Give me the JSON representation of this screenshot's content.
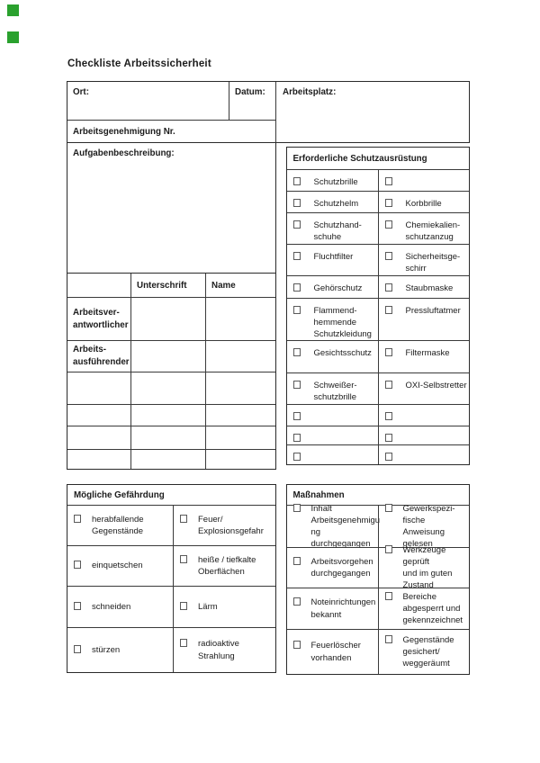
{
  "ui": {
    "marker_color": "#2aa12e"
  },
  "title": "Checkliste Arbeitssicherheit",
  "top": {
    "ort_label": "Ort:",
    "datum_label": "Datum:",
    "arbeitsplatz_label": "Arbeitsplatz:",
    "genehmigung_label": "Arbeitsgenehmigung Nr.",
    "aufgaben_label": "Aufgabenbeschreibung:"
  },
  "signature": {
    "header_unterschrift": "Unterschrift",
    "header_name": "Name",
    "rows": [
      {
        "label": "Arbeitsver-\nantwortlicher"
      },
      {
        "label": "Arbeits-\nausführender"
      },
      {
        "label": ""
      },
      {
        "label": ""
      },
      {
        "label": ""
      },
      {
        "label": ""
      }
    ]
  },
  "equipment": {
    "header": "Erforderliche Schutzausrüstung",
    "rows": [
      {
        "left": "Schutzbrille",
        "right": ""
      },
      {
        "left": "Schutzhelm",
        "right": "Korbbrille"
      },
      {
        "left": "Schutzhand-\nschuhe",
        "right": "Chemiekalien-\nschutzanzug"
      },
      {
        "left": "Fluchtfilter",
        "right": "Sicherheitsge-\nschirr"
      },
      {
        "left": "Gehörschutz",
        "right": "Staubmaske"
      },
      {
        "left": "Flammend-\nhemmende\nSchutzkleidung",
        "right": "Pressluftatmer"
      },
      {
        "left": "Gesichtsschutz",
        "right": "Filtermaske"
      },
      {
        "left": "Schweißer-\nschutzbrille",
        "right": "OXI-Selbstretter"
      },
      {
        "left": "",
        "right": ""
      },
      {
        "left": "",
        "right": ""
      },
      {
        "left": "",
        "right": ""
      }
    ]
  },
  "hazards": {
    "header": "Mögliche Gefährdung",
    "rows": [
      {
        "left": "herabfallende\nGegenstände",
        "right": "Feuer/\nExplosionsgefahr"
      },
      {
        "left": "einquetschen",
        "right": "heiße / tiefkalte\nOberflächen"
      },
      {
        "left": "schneiden",
        "right": "Lärm"
      },
      {
        "left": "stürzen",
        "right": "radioaktive Strahlung"
      }
    ]
  },
  "measures": {
    "header": "Maßnahmen",
    "rows": [
      {
        "left": "Inhalt\nArbeitsgenehmigu\nng durchgegangen",
        "right": "Gewerkspezi-fische\nAnweisung gelesen"
      },
      {
        "left": "Arbeitsvorgehen\ndurchgegangen",
        "right": "Werkzeuge geprüft\nund im guten\nZustand"
      },
      {
        "left": "Noteinrichtungen\nbekannt",
        "right": "Bereiche\nabgesperrt und\ngekennzeichnet"
      },
      {
        "left": "Feuerlöscher\nvorhanden",
        "right": "Gegenstände\ngesichert/\nweggeräumt"
      }
    ]
  }
}
